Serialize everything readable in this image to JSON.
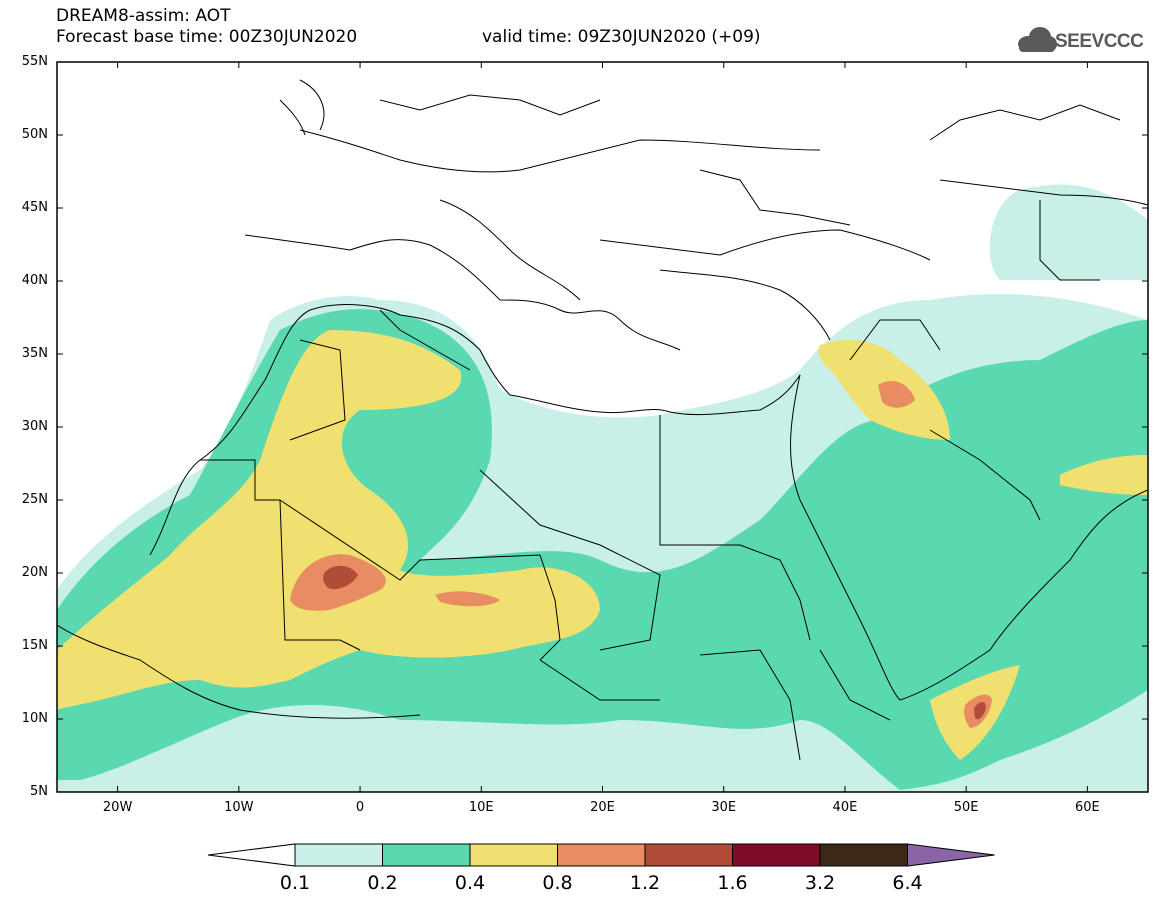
{
  "header": {
    "title_line1": "DREAM8-assim: AOT",
    "title_line2": "Forecast base time: 00Z30JUN2020",
    "valid_time": "valid time: 09Z30JUN2020 (+09)",
    "logo_text": "SEEVCCC"
  },
  "map": {
    "lon_range": [
      -25,
      65
    ],
    "lat_range": [
      5,
      55
    ],
    "lat_ticks": [
      "55N",
      "50N",
      "45N",
      "40N",
      "35N",
      "30N",
      "25N",
      "20N",
      "15N",
      "10N",
      "5N"
    ],
    "lon_ticks": [
      "20W",
      "10W",
      "0",
      "10E",
      "20E",
      "30E",
      "40E",
      "50E",
      "60E"
    ]
  },
  "colorbar": {
    "levels": [
      "0.1",
      "0.2",
      "0.4",
      "0.8",
      "1.2",
      "1.6",
      "3.2",
      "6.4"
    ],
    "colors": [
      "#ffffff",
      "#c8f0e8",
      "#5ad8b0",
      "#f0e070",
      "#e88c64",
      "#b04c38",
      "#7c0c28",
      "#3c2818",
      "#8c64a8"
    ]
  },
  "colors": {
    "c0": "#c8f0e8",
    "c1": "#5ad8b0",
    "c2": "#f0e070",
    "c3": "#e88c64",
    "c4": "#b04c38",
    "border": "#000000"
  }
}
